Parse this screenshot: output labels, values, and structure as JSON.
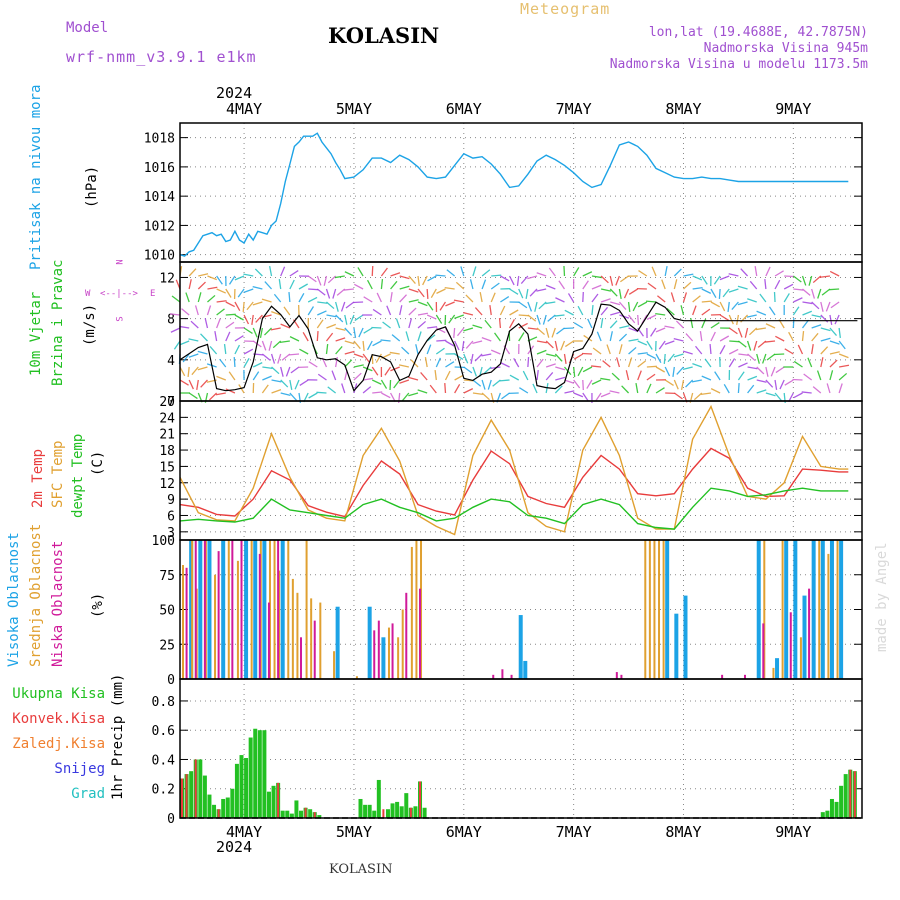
{
  "header": {
    "model_label": "Model",
    "model_name": "wrf-nmm_v3.9.1 e1km",
    "station": "KOLASIN",
    "product": "Meteogram",
    "lonlat": "lon,lat (19.4688E, 42.7875N)",
    "altitude": "Nadmorska Visina 945m",
    "model_altitude": "Nadmorska Visina u modelu 1173.5m",
    "year_top": "2024",
    "year_bottom": "2024",
    "footer": "KOLASIN",
    "watermark": "made by Angel"
  },
  "colors": {
    "pressure": "#1ca3e6",
    "wind_label": "#22c022",
    "wind_units": "#c844c8",
    "t2m": "#e83c3c",
    "tsfc": "#e0a030",
    "dew": "#22c022",
    "cloud_high": "#1ca3e6",
    "cloud_mid": "#e0a030",
    "cloud_low": "#d01a9a",
    "precip_total": "#22c022",
    "precip_conv": "#e83c3c",
    "precip_frozen": "#f08030",
    "snow": "#3a3ae0",
    "graupel": "#22c0c0",
    "header_purple": "#a050d0",
    "header_orange": "#e6c070"
  },
  "labels": {
    "pressure_title": "Pritisak na nivou mora",
    "pressure_unit": "(hPa)",
    "wind_title": "10m Vjetar",
    "wind_title2": "Brzina i Pravac",
    "wind_unit": "(m/s)",
    "compass_n": "N",
    "compass_s": "S",
    "compass_w": "W",
    "compass_e": "E",
    "compass_axis": "<--|-->",
    "temp_2m": "2m Temp",
    "temp_sfc": "SFC Temp",
    "temp_dew": "dewpt Temp",
    "temp_unit": "(C)",
    "cloud_high": "Visoka Oblacnost",
    "cloud_mid": "Srednja Oblacnost",
    "cloud_low": "Niska Oblacnost",
    "cloud_unit": "(%)",
    "precip_unit": "1hr Precip (mm)",
    "precip_total": "Ukupna Kisa",
    "precip_conv": "Konvek.Kisa",
    "precip_frozen": "Zaledj.Kisa",
    "precip_snow": "Snijeg",
    "precip_graupel": "Grad"
  },
  "chart_data": [
    {
      "type": "line",
      "name": "pressure",
      "ylim": [
        1009.5,
        1019
      ],
      "yticks": [
        1010,
        1012,
        1014,
        1016,
        1018
      ],
      "grid": true,
      "x_days": [
        "4MAY",
        "5MAY",
        "6MAY",
        "7MAY",
        "8MAY",
        "9MAY"
      ],
      "series": [
        {
          "name": "Pritisak na nivou mora",
          "x": [
            0,
            1,
            2,
            3,
            4,
            5,
            6,
            7,
            8,
            9,
            10,
            11,
            12,
            13,
            14,
            15,
            16,
            17,
            18,
            19,
            20,
            21,
            22,
            23,
            24,
            25,
            26,
            27,
            28,
            29,
            30,
            31,
            32,
            33,
            34,
            35,
            36,
            38,
            40,
            42,
            44,
            46,
            48,
            50,
            52,
            54,
            56,
            58,
            60,
            62,
            64,
            66,
            68,
            70,
            72,
            74,
            76,
            78,
            80,
            82,
            84,
            86,
            88,
            90,
            92,
            94,
            96,
            98,
            100,
            102,
            104,
            106,
            108,
            110,
            112,
            114,
            116,
            118,
            120,
            122,
            124,
            126,
            128,
            130,
            132,
            134,
            136,
            138,
            140,
            142,
            144,
            146
          ],
          "y": [
            1010.0,
            1009.9,
            1010.2,
            1010.3,
            1010.8,
            1011.3,
            1011.4,
            1011.5,
            1011.3,
            1011.4,
            1010.9,
            1011.0,
            1011.6,
            1011.0,
            1010.8,
            1011.4,
            1011.0,
            1011.6,
            1011.5,
            1011.4,
            1012.0,
            1012.3,
            1013.5,
            1015.0,
            1016.2,
            1017.4,
            1017.7,
            1018.1,
            1018.1,
            1018.1,
            1018.3,
            1017.7,
            1017.3,
            1016.9,
            1016.3,
            1015.8,
            1015.2,
            1015.3,
            1015.8,
            1016.6,
            1016.6,
            1016.3,
            1016.8,
            1016.5,
            1016.0,
            1015.3,
            1015.2,
            1015.3,
            1016.1,
            1016.9,
            1016.6,
            1016.7,
            1016.2,
            1015.5,
            1014.6,
            1014.7,
            1015.5,
            1016.4,
            1016.8,
            1016.5,
            1016.1,
            1015.6,
            1015.0,
            1014.6,
            1014.8,
            1016.1,
            1017.5,
            1017.7,
            1017.4,
            1016.8,
            1015.9,
            1015.6,
            1015.3,
            1015.2,
            1015.2,
            1015.3,
            1015.2,
            1015.2,
            1015.1,
            1015.0,
            1015.0,
            1015.0,
            1015.0,
            1015.0,
            1015.0,
            1015.0,
            1015.0,
            1015.0,
            1015.0,
            1015.0,
            1015.0,
            1015.0
          ]
        }
      ]
    },
    {
      "type": "line",
      "name": "wind",
      "ylim": [
        0,
        13.5
      ],
      "yticks": [
        0,
        4,
        8,
        12
      ],
      "grid": true,
      "series": [
        {
          "name": "10m wind speed",
          "x": [
            0,
            2,
            4,
            6,
            8,
            10,
            12,
            14,
            16,
            18,
            20,
            22,
            24,
            26,
            28,
            30,
            32,
            34,
            36,
            38,
            40,
            42,
            44,
            46,
            48,
            50,
            52,
            54,
            56,
            58,
            60,
            62,
            64,
            66,
            68,
            70,
            72,
            74,
            76,
            78,
            80,
            82,
            84,
            86,
            88,
            90,
            92,
            94,
            96,
            98,
            100,
            102,
            104,
            106,
            108,
            110,
            112,
            114,
            116,
            118,
            120,
            122,
            124,
            126,
            128,
            130,
            132,
            134,
            136,
            138,
            140,
            142,
            144,
            146,
            148
          ],
          "y": [
            4.0,
            4.6,
            5.2,
            5.5,
            1.2,
            1.0,
            1.1,
            1.3,
            3.8,
            8.0,
            9.2,
            8.4,
            7.2,
            8.3,
            7.0,
            4.2,
            4.0,
            4.1,
            3.5,
            1.0,
            2.0,
            4.5,
            4.3,
            3.8,
            2.0,
            2.4,
            4.5,
            5.9,
            6.9,
            7.2,
            5.4,
            2.2,
            2.0,
            2.6,
            2.8,
            3.6,
            6.8,
            7.5,
            6.5,
            1.5,
            1.3,
            1.2,
            1.8,
            4.8,
            5.1,
            6.5,
            9.4,
            9.3,
            8.8,
            7.5,
            6.8,
            8.2,
            9.6,
            9.1,
            8.0,
            7.8,
            7.8,
            7.8,
            7.8,
            7.8,
            7.8,
            7.8,
            7.8,
            7.8,
            7.8,
            7.8,
            7.8,
            7.8,
            7.8,
            7.8,
            7.8,
            7.8,
            7.8,
            7.8,
            7.8
          ]
        }
      ]
    },
    {
      "type": "line",
      "name": "temperature",
      "ylim": [
        1.5,
        27
      ],
      "yticks": [
        3,
        6,
        9,
        12,
        15,
        18,
        21,
        24,
        27
      ],
      "grid": true,
      "series": [
        {
          "name": "2m Temp",
          "x": [
            0,
            4,
            8,
            12,
            16,
            20,
            24,
            28,
            32,
            36,
            40,
            44,
            48,
            52,
            56,
            60,
            64,
            68,
            72,
            76,
            80,
            84,
            88,
            92,
            96,
            100,
            104,
            108,
            112,
            116,
            120,
            124,
            128,
            132,
            136,
            140,
            144,
            146
          ],
          "y": [
            8.0,
            7.5,
            6.2,
            5.9,
            9.0,
            14.2,
            12.5,
            7.8,
            6.6,
            5.8,
            11.5,
            16.0,
            13.6,
            8.0,
            6.8,
            6.1,
            12.5,
            17.8,
            15.5,
            9.5,
            8.2,
            7.5,
            13.0,
            17.0,
            14.5,
            10.0,
            9.6,
            10.0,
            14.5,
            18.3,
            16.5,
            11.0,
            9.5,
            9.6,
            14.5,
            14.3,
            14.0,
            14.0
          ]
        },
        {
          "name": "SFC Temp",
          "x": [
            0,
            4,
            8,
            12,
            16,
            20,
            24,
            28,
            32,
            36,
            40,
            44,
            48,
            52,
            56,
            60,
            64,
            68,
            72,
            76,
            80,
            84,
            88,
            92,
            96,
            100,
            104,
            108,
            112,
            116,
            120,
            124,
            128,
            132,
            136,
            140,
            144,
            146
          ],
          "y": [
            13.0,
            6.5,
            5.2,
            5.0,
            11.0,
            21.0,
            13.0,
            7.0,
            5.5,
            5.0,
            17.0,
            22.0,
            16.0,
            6.0,
            4.0,
            2.5,
            17.0,
            23.5,
            18.0,
            6.5,
            4.0,
            3.0,
            18.0,
            24.0,
            17.0,
            5.5,
            3.5,
            3.5,
            20.0,
            26.0,
            17.0,
            9.5,
            9.0,
            12.0,
            20.5,
            15.0,
            14.5,
            14.5
          ]
        },
        {
          "name": "dewpt Temp",
          "x": [
            0,
            4,
            8,
            12,
            16,
            20,
            24,
            28,
            32,
            36,
            40,
            44,
            48,
            52,
            56,
            60,
            64,
            68,
            72,
            76,
            80,
            84,
            88,
            92,
            96,
            100,
            104,
            108,
            112,
            116,
            120,
            124,
            128,
            132,
            136,
            140,
            144,
            146
          ],
          "y": [
            5.0,
            5.3,
            5.0,
            4.8,
            5.5,
            9.0,
            7.0,
            6.5,
            6.0,
            5.5,
            8.0,
            9.0,
            7.5,
            6.5,
            5.0,
            5.5,
            7.5,
            9.0,
            8.5,
            6.0,
            5.5,
            4.5,
            8.0,
            9.0,
            8.0,
            4.5,
            3.8,
            3.5,
            7.5,
            11.0,
            10.5,
            9.5,
            9.8,
            10.5,
            11.0,
            10.5,
            10.5,
            10.5
          ]
        }
      ]
    },
    {
      "type": "bar",
      "name": "cloud_cover",
      "ylim": [
        0,
        100
      ],
      "yticks": [
        0,
        25,
        50,
        75,
        100
      ],
      "grid": true,
      "series": [
        {
          "name": "Visoka Oblacnost",
          "x": [
            2,
            4,
            6,
            9,
            14,
            16,
            18,
            22,
            34,
            41,
            44,
            74,
            75,
            106,
            108,
            110,
            126,
            130,
            132,
            134,
            136,
            138,
            140,
            142,
            144
          ],
          "y": [
            100,
            100,
            100,
            100,
            100,
            100,
            100,
            100,
            52,
            52,
            30,
            46,
            13,
            100,
            47,
            60,
            100,
            15,
            100,
            100,
            60,
            100,
            100,
            100,
            100
          ]
        },
        {
          "name": "Srednja Oblacnost",
          "x": [
            0,
            2,
            3,
            5,
            7,
            10,
            12,
            15,
            17,
            19,
            20,
            21,
            23,
            24,
            25,
            27,
            28,
            30,
            33,
            38,
            45,
            47,
            48,
            50,
            51,
            52,
            101,
            102,
            103,
            104,
            105,
            127,
            129,
            131,
            135,
            139,
            141,
            143
          ],
          "y": [
            82,
            100,
            65,
            100,
            75,
            100,
            85,
            100,
            100,
            100,
            100,
            78,
            100,
            72,
            62,
            100,
            58,
            55,
            20,
            2,
            37,
            30,
            50,
            95,
            100,
            100,
            100,
            100,
            100,
            100,
            100,
            100,
            8,
            100,
            30,
            100,
            90,
            100
          ]
        },
        {
          "name": "Niska Oblacnost",
          "x": [
            1,
            3,
            5,
            8,
            11,
            13,
            17,
            19,
            21,
            26,
            29,
            42,
            43,
            46,
            49,
            52,
            68,
            70,
            72,
            95,
            96,
            118,
            123,
            127,
            133,
            137
          ],
          "y": [
            80,
            100,
            100,
            92,
            100,
            100,
            90,
            55,
            100,
            30,
            42,
            35,
            42,
            40,
            62,
            65,
            3,
            7,
            3,
            5,
            3,
            3,
            3,
            40,
            48,
            65
          ]
        }
      ]
    },
    {
      "type": "bar",
      "name": "precipitation",
      "ylim": [
        0,
        0.95
      ],
      "yticks": [
        0,
        0.2,
        0.4,
        0.6,
        0.8
      ],
      "grid": true,
      "series": [
        {
          "name": "Ukupna Kisa",
          "x": [
            0,
            1,
            2,
            3,
            4,
            5,
            6,
            7,
            8,
            9,
            10,
            11,
            12,
            13,
            14,
            15,
            16,
            17,
            18,
            19,
            20,
            21,
            22,
            23,
            24,
            25,
            26,
            27,
            28,
            29,
            30,
            31,
            32,
            33,
            34,
            35,
            36,
            37,
            38,
            39,
            40,
            41,
            42,
            43,
            44,
            45,
            46,
            47,
            48,
            49,
            50,
            51,
            52,
            53,
            140,
            141,
            142,
            143,
            144,
            145,
            146,
            147
          ],
          "y": [
            0.27,
            0.3,
            0.32,
            0.4,
            0.4,
            0.29,
            0.16,
            0.09,
            0.06,
            0.13,
            0.14,
            0.2,
            0.37,
            0.43,
            0.41,
            0.55,
            0.61,
            0.6,
            0.6,
            0.18,
            0.22,
            0.24,
            0.05,
            0.05,
            0.03,
            0.12,
            0.05,
            0.07,
            0.06,
            0.04,
            0.02,
            0.0,
            0.0,
            0.0,
            0.0,
            0.0,
            0.0,
            0.0,
            0.0,
            0.13,
            0.09,
            0.09,
            0.05,
            0.26,
            0.0,
            0.06,
            0.1,
            0.11,
            0.08,
            0.17,
            0.07,
            0.08,
            0.25,
            0.07,
            0.04,
            0.05,
            0.13,
            0.11,
            0.22,
            0.3,
            0.33,
            0.32
          ]
        },
        {
          "name": "Konvek.Kisa",
          "x": [
            0,
            1,
            3,
            8,
            21,
            27,
            29,
            44,
            50,
            52,
            146,
            147
          ],
          "y": [
            0.27,
            0.3,
            0.4,
            0.06,
            0.24,
            0.07,
            0.04,
            0.06,
            0.07,
            0.25,
            0.33,
            0.32
          ]
        }
      ]
    }
  ]
}
